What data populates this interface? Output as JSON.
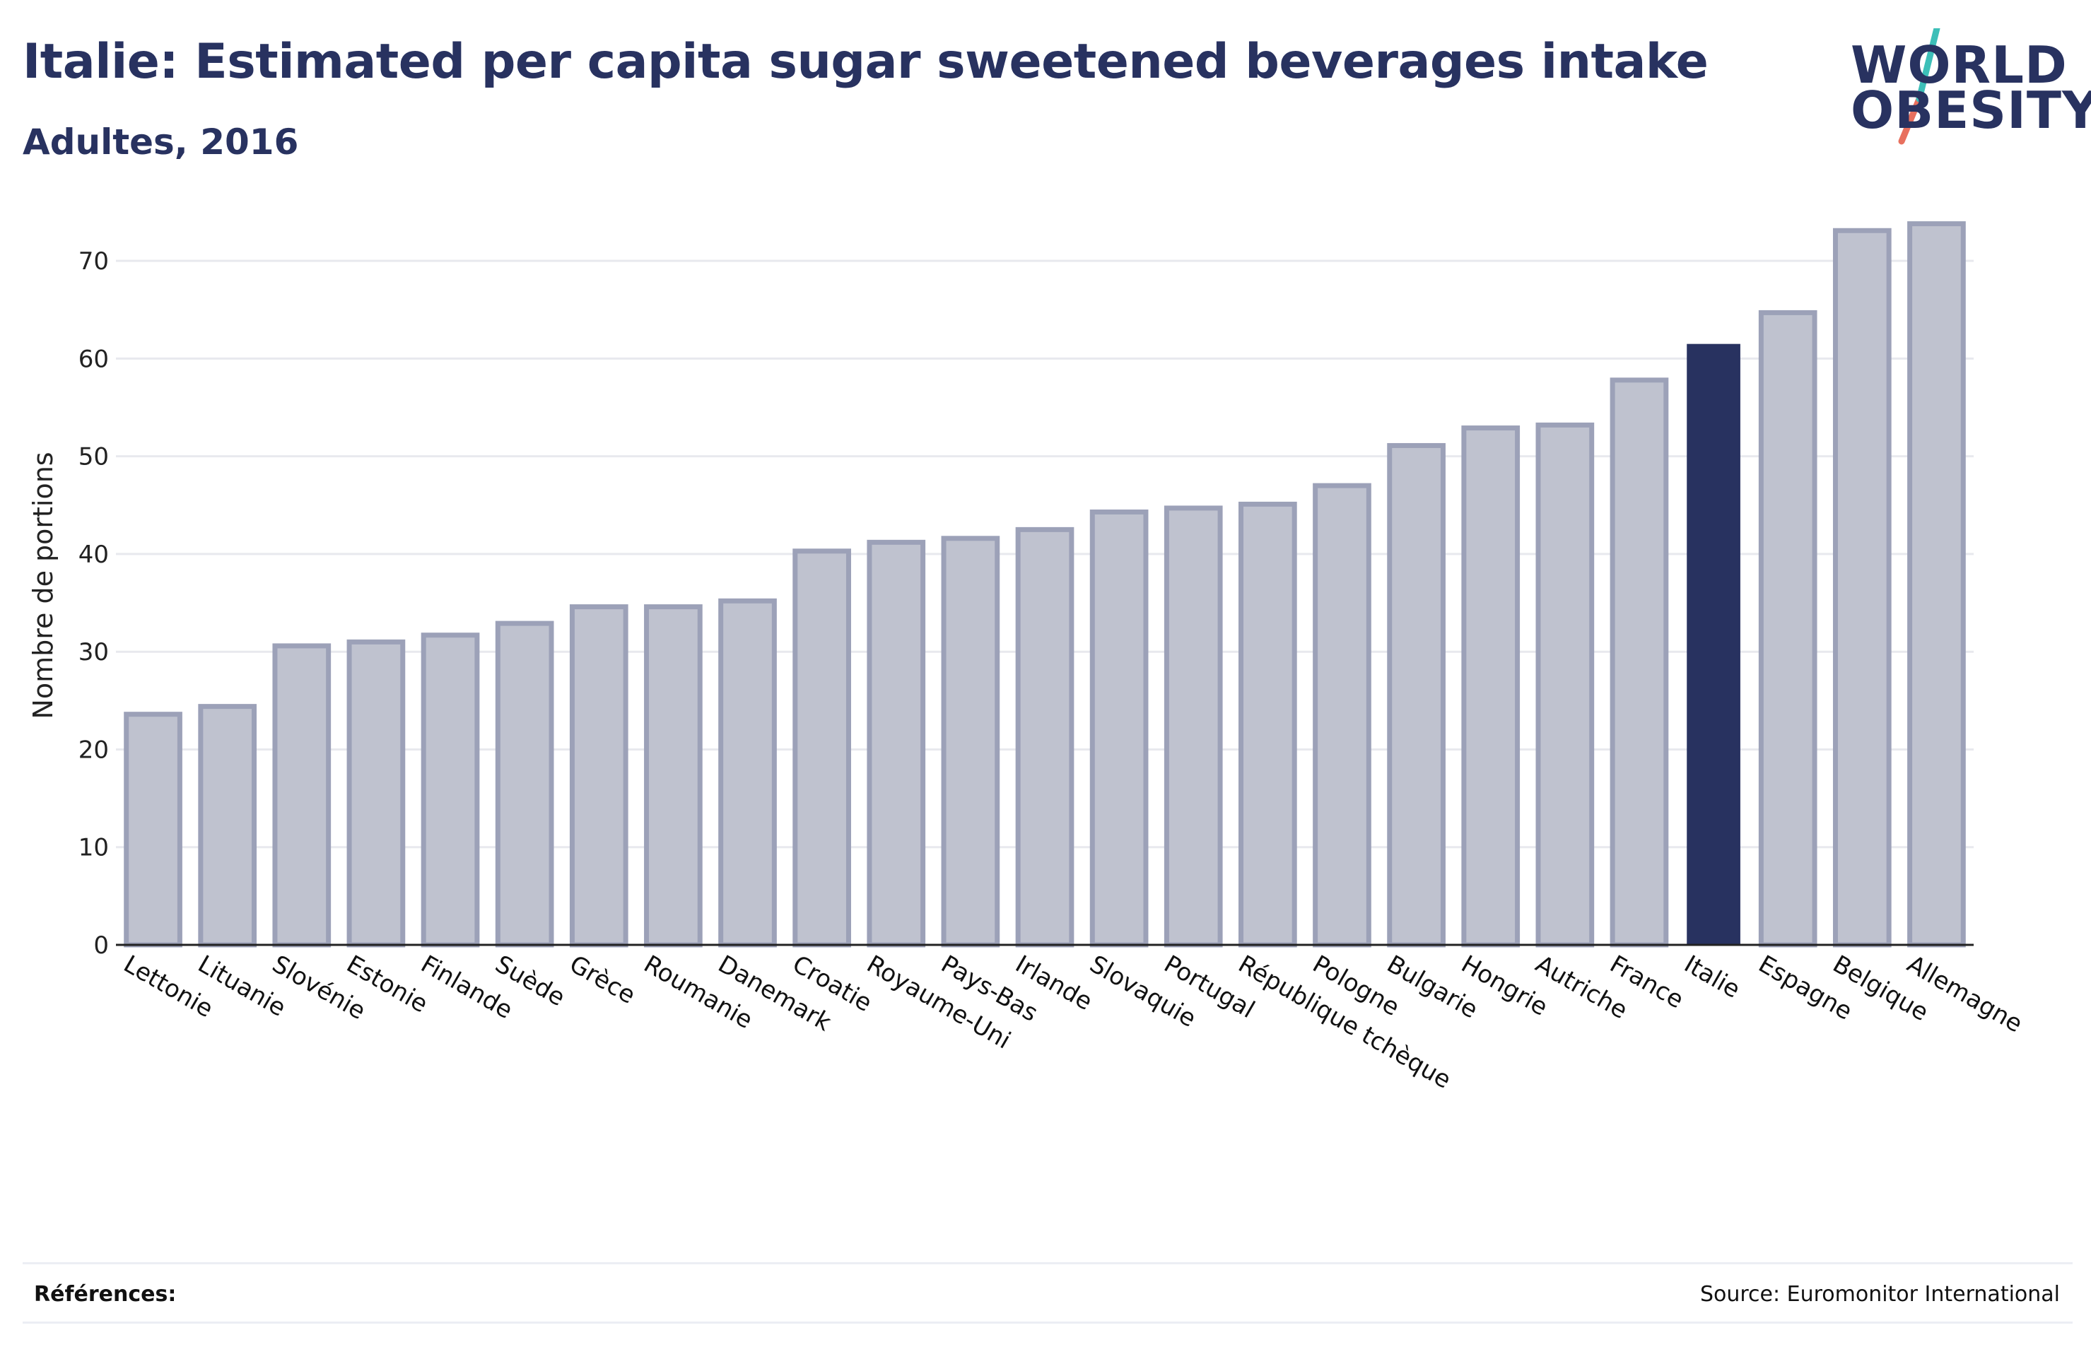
{
  "header": {
    "title": "Italie: Estimated per capita sugar sweetened beverages intake",
    "subtitle": "Adultes, 2016"
  },
  "logo": {
    "line1": "WORLD",
    "line2": "OBESITY",
    "colors": {
      "text": "#283260",
      "slash_top": "#3dbfb8",
      "slash_bottom": "#e8705e"
    }
  },
  "footer": {
    "references_label": "Références:",
    "source": "Source: Euromonitor International"
  },
  "colors": {
    "bar": "#bfc2cf",
    "bar_border": "#9ca1b8",
    "highlight": "#283260",
    "grid": "#e8e9ee",
    "axis": "#222222"
  },
  "chart_data": {
    "type": "bar",
    "title": "Italie: Estimated per capita sugar sweetened beverages intake",
    "subtitle": "Adultes, 2016",
    "xlabel": "",
    "ylabel": "Nombre de portions",
    "ylim": [
      0,
      75
    ],
    "yticks": [
      0,
      10,
      20,
      30,
      40,
      50,
      60,
      70
    ],
    "grid": true,
    "highlight": "Italie",
    "categories": [
      "Lettonie",
      "Lituanie",
      "Slovénie",
      "Estonie",
      "Finlande",
      "Suède",
      "Grèce",
      "Roumanie",
      "Danemark",
      "Croatie",
      "Royaume-Uni",
      "Pays-Bas",
      "Irlande",
      "Slovaquie",
      "Portugal",
      "République tchèque",
      "Pologne",
      "Bulgarie",
      "Hongrie",
      "Autriche",
      "France",
      "Italie",
      "Espagne",
      "Belgique",
      "Allemagne"
    ],
    "values": [
      23.6,
      24.4,
      30.6,
      31.0,
      31.7,
      32.9,
      34.6,
      34.6,
      35.2,
      40.3,
      41.2,
      41.6,
      42.5,
      44.3,
      44.7,
      45.1,
      47.0,
      51.1,
      52.9,
      53.2,
      57.8,
      61.5,
      64.7,
      73.1,
      73.8
    ]
  }
}
